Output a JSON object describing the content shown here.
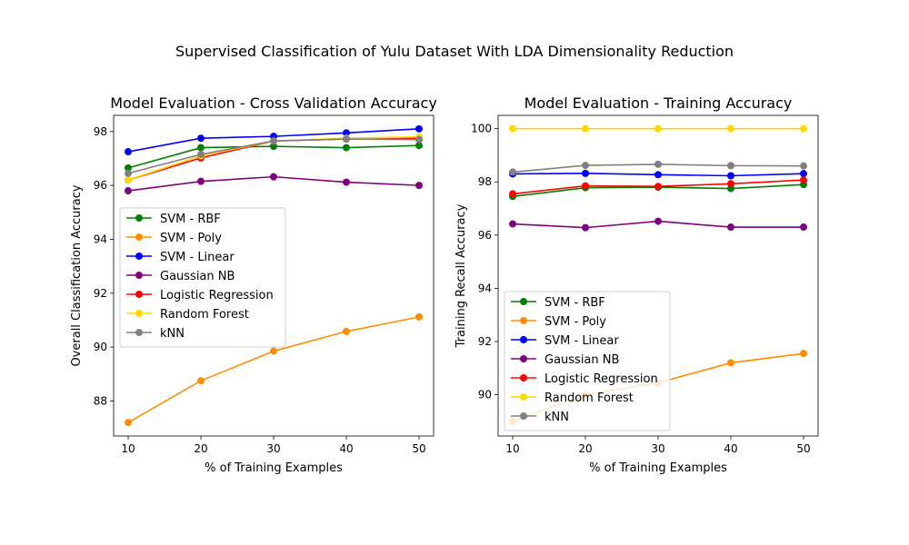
{
  "suptitle": "Supervised Classification of Yulu Dataset With LDA Dimensionality Reduction",
  "chart_data": [
    {
      "type": "line",
      "title": "Model Evaluation - Cross Validation Accuracy",
      "xlabel": "% of Training Examples",
      "ylabel": "Overall Classification Accuracy",
      "x": [
        10,
        20,
        30,
        40,
        50
      ],
      "xticks": [
        10,
        20,
        30,
        40,
        50
      ],
      "xlim": [
        8,
        52
      ],
      "yticks": [
        88,
        90,
        92,
        94,
        96,
        98
      ],
      "ylim": [
        86.7,
        98.6
      ],
      "legend": "center-left",
      "series": [
        {
          "name": "SVM - RBF",
          "color": "#008000",
          "values": [
            96.65,
            97.4,
            97.45,
            97.4,
            97.48
          ]
        },
        {
          "name": "SVM - Poly",
          "color": "#ff8c00",
          "values": [
            87.2,
            88.75,
            89.85,
            90.58,
            91.12
          ]
        },
        {
          "name": "SVM - Linear",
          "color": "#0000ff",
          "values": [
            97.25,
            97.75,
            97.82,
            97.95,
            98.1
          ]
        },
        {
          "name": "Gaussian NB",
          "color": "#800080",
          "values": [
            95.8,
            96.15,
            96.32,
            96.12,
            96.0
          ]
        },
        {
          "name": "Logistic Regression",
          "color": "#ff0000",
          "values": [
            96.2,
            97.02,
            97.65,
            97.72,
            97.75
          ]
        },
        {
          "name": "Random Forest",
          "color": "#ffd700",
          "values": [
            96.2,
            97.1,
            97.65,
            97.75,
            97.8
          ]
        },
        {
          "name": "kNN",
          "color": "#808080",
          "values": [
            96.45,
            97.15,
            97.65,
            97.72,
            97.7
          ]
        }
      ]
    },
    {
      "type": "line",
      "title": "Model Evaluation - Training Accuracy",
      "xlabel": "% of Training Examples",
      "ylabel": "Training Recall Accuracy",
      "x": [
        10,
        20,
        30,
        40,
        50
      ],
      "xticks": [
        10,
        20,
        30,
        40,
        50
      ],
      "xlim": [
        8,
        52
      ],
      "yticks": [
        90,
        92,
        94,
        96,
        98,
        100
      ],
      "ylim": [
        88.45,
        100.5
      ],
      "legend": "lower-left",
      "series": [
        {
          "name": "SVM - RBF",
          "color": "#008000",
          "values": [
            97.45,
            97.78,
            97.8,
            97.75,
            97.9
          ]
        },
        {
          "name": "SVM - Poly",
          "color": "#ff8c00",
          "values": [
            89.0,
            90.0,
            90.45,
            91.2,
            91.55
          ]
        },
        {
          "name": "SVM - Linear",
          "color": "#0000ff",
          "values": [
            98.3,
            98.32,
            98.27,
            98.23,
            98.31
          ]
        },
        {
          "name": "Gaussian NB",
          "color": "#800080",
          "values": [
            96.42,
            96.28,
            96.52,
            96.3,
            96.3
          ]
        },
        {
          "name": "Logistic Regression",
          "color": "#ff0000",
          "values": [
            97.55,
            97.85,
            97.83,
            97.93,
            98.07
          ]
        },
        {
          "name": "Random Forest",
          "color": "#ffd700",
          "values": [
            100.0,
            100.0,
            100.0,
            100.0,
            100.0
          ]
        },
        {
          "name": "kNN",
          "color": "#808080",
          "values": [
            98.37,
            98.62,
            98.66,
            98.61,
            98.6
          ]
        }
      ]
    }
  ]
}
